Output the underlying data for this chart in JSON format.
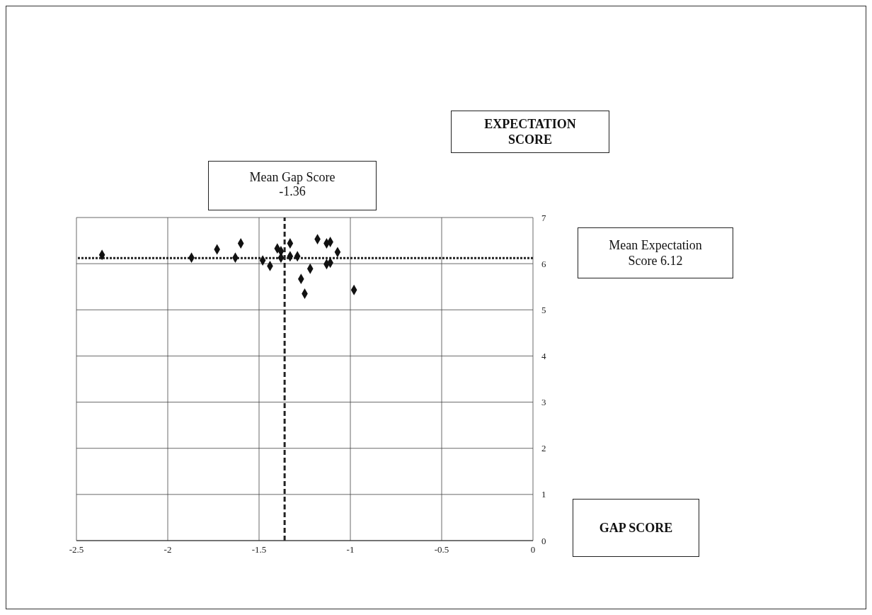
{
  "chart_data": {
    "type": "scatter",
    "xlabel": "GAP SCORE",
    "annotations": [
      "EXPECTATION SCORE",
      "Mean Expectation Score 6.12"
    ],
    "x": [
      -2.36,
      -1.87,
      -1.73,
      -1.6,
      -1.63,
      -1.48,
      -1.44,
      -1.4,
      -1.38,
      -1.38,
      -1.33,
      -1.33,
      -1.29,
      -1.27,
      -1.25,
      -1.22,
      -1.18,
      -1.13,
      -1.11,
      -1.07,
      -1.13,
      -1.11,
      -0.98
    ],
    "series": [
      {
        "color": "#111111",
        "values": [
          6.19,
          6.13,
          6.31,
          6.44,
          6.13,
          6.07,
          5.95,
          6.33,
          6.27,
          6.13,
          6.44,
          6.16,
          6.16,
          5.67,
          5.35,
          5.89,
          6.53,
          6.44,
          6.47,
          6.25,
          5.99,
          6.02,
          5.43
        ]
      }
    ],
    "xlim": [
      -2.5,
      0
    ],
    "xticks": [
      -2.5,
      -2,
      -1.5,
      -1,
      -0.5,
      0
    ],
    "ylim": [
      0,
      7
    ],
    "yticks": [
      0,
      1,
      2,
      3,
      4,
      5,
      6,
      7
    ],
    "grid": true,
    "marker": "diamond",
    "ref_lines": [
      {
        "axis": "x",
        "value": -1.36,
        "label": "Mean Gap Score -1.36",
        "color": "#222222",
        "line_style": "dashed"
      },
      {
        "axis": "y",
        "value": 6.12,
        "color": "#222222",
        "line_style": "dotted"
      }
    ]
  }
}
